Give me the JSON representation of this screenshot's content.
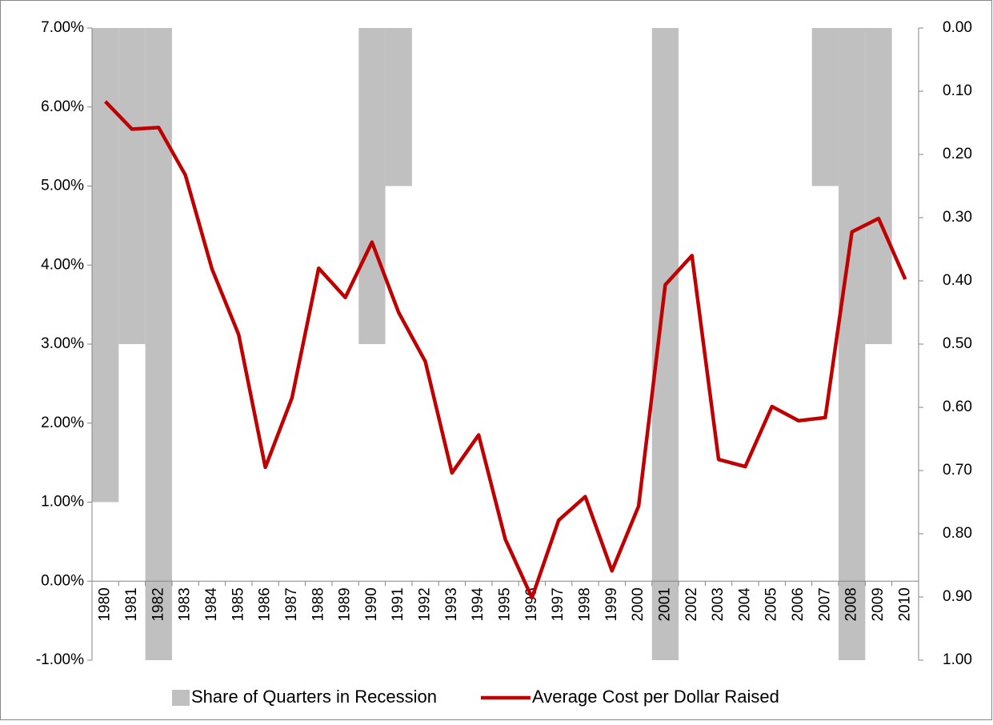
{
  "chart_data": {
    "type": "bar-line",
    "categories": [
      "1980",
      "1981",
      "1982",
      "1983",
      "1984",
      "1985",
      "1986",
      "1987",
      "1988",
      "1989",
      "1990",
      "1991",
      "1992",
      "1993",
      "1994",
      "1995",
      "1996",
      "1997",
      "1998",
      "1999",
      "2000",
      "2001",
      "2002",
      "2003",
      "2004",
      "2005",
      "2006",
      "2007",
      "2008",
      "2009",
      "2010"
    ],
    "series": [
      {
        "name": "Share of Quarters in Recession",
        "type": "bar",
        "axis": "y2",
        "color": "#c0c0c0",
        "values": [
          0.75,
          0.5,
          1.0,
          0,
          0,
          0,
          0,
          0,
          0,
          0,
          0.5,
          0.25,
          0,
          0,
          0,
          0,
          0,
          0,
          0,
          0,
          0,
          1.0,
          0,
          0,
          0,
          0,
          0,
          0.25,
          1.0,
          0.5,
          0
        ]
      },
      {
        "name": "Average Cost per Dollar Raised",
        "type": "line",
        "axis": "y",
        "color": "#c00000",
        "values": [
          6.07,
          5.72,
          5.74,
          5.14,
          3.95,
          3.12,
          1.44,
          2.32,
          3.96,
          3.59,
          4.29,
          3.4,
          2.78,
          1.37,
          1.85,
          0.53,
          -0.21,
          0.77,
          1.07,
          0.13,
          0.95,
          3.75,
          4.12,
          1.54,
          1.45,
          2.21,
          2.03,
          2.07,
          4.42,
          4.59,
          3.82
        ]
      }
    ],
    "ylim": [
      -1,
      7
    ],
    "yticks": [
      {
        "value": -1,
        "label": "-1.00%"
      },
      {
        "value": 0,
        "label": "0.00%"
      },
      {
        "value": 1,
        "label": "1.00%"
      },
      {
        "value": 2,
        "label": "2.00%"
      },
      {
        "value": 3,
        "label": "3.00%"
      },
      {
        "value": 4,
        "label": "4.00%"
      },
      {
        "value": 5,
        "label": "5.00%"
      },
      {
        "value": 6,
        "label": "6.00%"
      },
      {
        "value": 7,
        "label": "7.00%"
      }
    ],
    "y2lim": [
      1,
      0
    ],
    "y2ticks": [
      {
        "value": 1,
        "label": "1.00"
      },
      {
        "value": 0.9,
        "label": "0.90"
      },
      {
        "value": 0.8,
        "label": "0.80"
      },
      {
        "value": 0.7,
        "label": "0.70"
      },
      {
        "value": 0.6,
        "label": "0.60"
      },
      {
        "value": 0.5,
        "label": "0.50"
      },
      {
        "value": 0.4,
        "label": "0.40"
      },
      {
        "value": 0.3,
        "label": "0.30"
      },
      {
        "value": 0.2,
        "label": "0.20"
      },
      {
        "value": 0.1,
        "label": "0.10"
      },
      {
        "value": 0,
        "label": "0.00"
      }
    ],
    "legend": "bottom"
  }
}
